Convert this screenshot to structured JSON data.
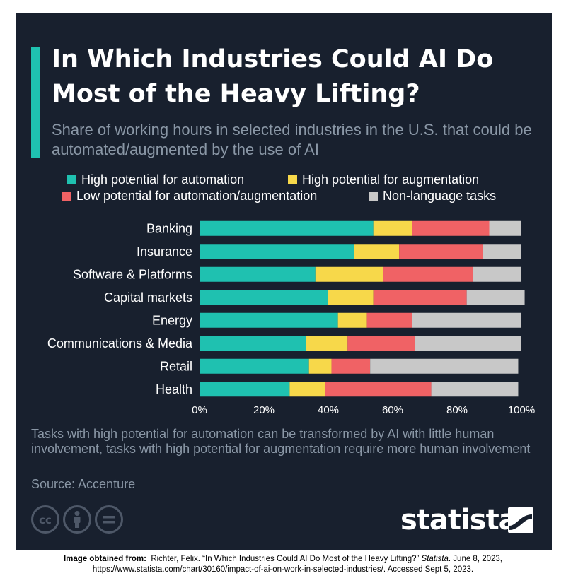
{
  "header": {
    "title": "In Which Industries Could AI Do Most of the Heavy Lifting?",
    "subtitle": "Share of working hours in selected industries in the U.S. that could be automated/augmented by the use of AI"
  },
  "colors": {
    "background": "#18202e",
    "accent": "#1fc1b0",
    "automation": "#1fc1b0",
    "augmentation": "#f7d84a",
    "low": "#f06265",
    "non_language": "#c8c8c8"
  },
  "chart_data": {
    "type": "bar",
    "orientation": "horizontal",
    "stacked": true,
    "categories": [
      "Banking",
      "Insurance",
      "Software & Platforms",
      "Capital markets",
      "Energy",
      "Communications & Media",
      "Retail",
      "Health"
    ],
    "series": [
      {
        "name": "High potential for automation",
        "color": "#1fc1b0",
        "values": [
          54,
          48,
          36,
          40,
          43,
          33,
          34,
          28
        ]
      },
      {
        "name": "High potential for augmentation",
        "color": "#f7d84a",
        "values": [
          12,
          14,
          21,
          14,
          9,
          13,
          7,
          11
        ]
      },
      {
        "name": "Low potential for automation/augmentation",
        "color": "#f06265",
        "values": [
          24,
          26,
          28,
          29,
          14,
          21,
          12,
          33
        ]
      },
      {
        "name": "Non-language tasks",
        "color": "#c8c8c8",
        "values": [
          10,
          12,
          15,
          18,
          34,
          33,
          46,
          27
        ]
      }
    ],
    "xlim": [
      0,
      100
    ],
    "xticks": [
      "0%",
      "20%",
      "40%",
      "60%",
      "80%",
      "100%"
    ],
    "grid": false,
    "legend_position": "top"
  },
  "footer": {
    "note": "Tasks with high potential for automation can be transformed by AI with little human involvement, tasks with high potential for augmentation require more human involvement",
    "source": "Source: Accenture",
    "license_icons": [
      "cc-icon",
      "person-icon",
      "equals-icon"
    ],
    "logo": "statista"
  },
  "attribution": {
    "label": "Image obtained from:",
    "text": "Richter, Felix. “In Which Industries Could AI Do Most of the Heavy Lifting?”",
    "publication": "Statista",
    "details": ". June 8, 2023, https://www.statista.com/chart/30160/impact-of-ai-on-work-in-selected-industries/.  Accessed Sept 5, 2023."
  }
}
